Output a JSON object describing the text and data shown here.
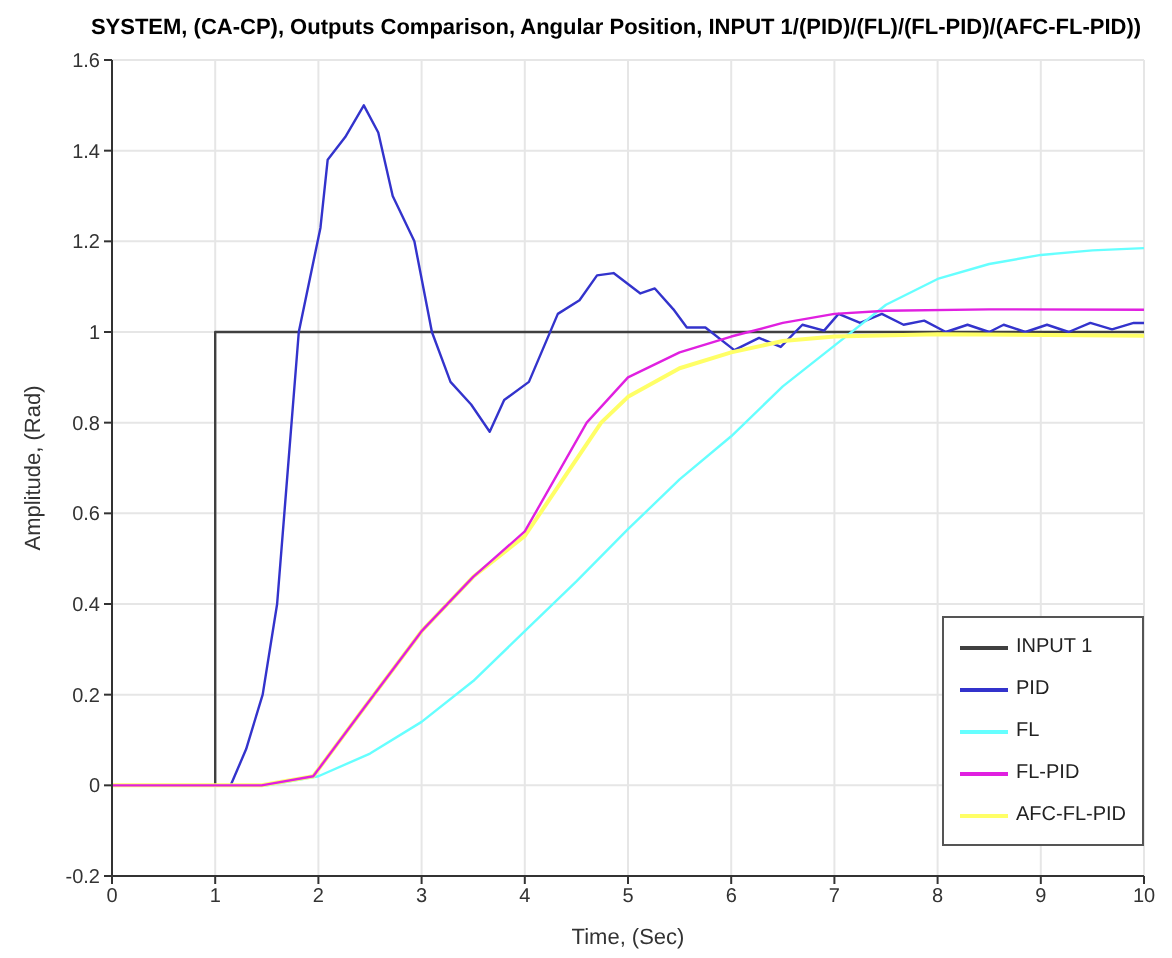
{
  "chart_data": {
    "type": "line",
    "title": "SYSTEM, (CA-CP), Outputs Comparison, Angular Position, INPUT 1/(PID)/(FL)/(FL-PID)/(AFC-FL-PID))",
    "xlabel": "Time, (Sec)",
    "ylabel": "Amplitude, (Rad)",
    "xlim": [
      0,
      10
    ],
    "xticks": [
      0,
      1,
      2,
      3,
      4,
      5,
      6,
      7,
      8,
      9,
      10
    ],
    "ylim": [
      -0.2,
      1.6
    ],
    "yticks": [
      -0.2,
      0,
      0.2,
      0.4,
      0.6,
      0.8,
      1,
      1.2,
      1.4,
      1.6
    ],
    "grid": true,
    "legend": "bottom right",
    "series": [
      {
        "name": "INPUT 1",
        "color": "#404040",
        "x": [
          0,
          1,
          1,
          10
        ],
        "values": [
          0,
          0,
          1,
          1
        ]
      },
      {
        "name": "PID",
        "color": "#3333cc",
        "x": [
          0,
          1.15,
          1.3,
          1.46,
          1.6,
          1.67,
          1.81,
          2.02,
          2.09,
          2.26,
          2.44,
          2.58,
          2.72,
          2.93,
          3.1,
          3.28,
          3.48,
          3.66,
          3.8,
          4.04,
          4.32,
          4.53,
          4.7,
          4.86,
          5.12,
          5.26,
          5.44,
          5.57,
          5.75,
          6.03,
          6.27,
          6.48,
          6.69,
          6.9,
          7.04,
          7.25,
          7.46,
          7.67,
          7.87,
          8.08,
          8.29,
          8.5,
          8.64,
          8.85,
          9.06,
          9.27,
          9.48,
          9.69,
          9.9,
          10
        ],
        "values": [
          0,
          0,
          0.08,
          0.2,
          0.4,
          0.6,
          1.0,
          1.23,
          1.38,
          1.43,
          1.5,
          1.44,
          1.3,
          1.2,
          1.0,
          0.89,
          0.84,
          0.78,
          0.85,
          0.89,
          1.04,
          1.07,
          1.125,
          1.13,
          1.085,
          1.096,
          1.05,
          1.01,
          1.01,
          0.96,
          0.987,
          0.967,
          1.016,
          1.003,
          1.04,
          1.02,
          1.04,
          1.016,
          1.025,
          1.0,
          1.016,
          1.0,
          1.016,
          1.0,
          1.016,
          1.0,
          1.02,
          1.006,
          1.02,
          1.02
        ]
      },
      {
        "name": "FL",
        "color": "#66ffff",
        "x": [
          0,
          1.5,
          2,
          2.5,
          3,
          3.5,
          4,
          4.5,
          5,
          5.5,
          6,
          6.5,
          7,
          7.5,
          8,
          8.5,
          9,
          9.5,
          10
        ],
        "values": [
          0,
          0,
          0.02,
          0.07,
          0.14,
          0.23,
          0.34,
          0.45,
          0.565,
          0.675,
          0.77,
          0.88,
          0.97,
          1.06,
          1.117,
          1.15,
          1.17,
          1.18,
          1.185
        ]
      },
      {
        "name": "FL-PID",
        "color": "#e020e0",
        "x": [
          0,
          1.45,
          1.95,
          2.44,
          3,
          3.5,
          4,
          4.6,
          5,
          5.5,
          6,
          6.5,
          7,
          7.5,
          8.5,
          10
        ],
        "values": [
          0,
          0,
          0.02,
          0.17,
          0.34,
          0.46,
          0.56,
          0.8,
          0.9,
          0.955,
          0.99,
          1.02,
          1.04,
          1.047,
          1.05,
          1.049
        ]
      },
      {
        "name": "AFC-FL-PID",
        "color": "#ffff66",
        "x": [
          0,
          1.45,
          1.95,
          2.44,
          3,
          3.5,
          4,
          4.74,
          5,
          5.5,
          6,
          6.5,
          7,
          8,
          10
        ],
        "values": [
          0,
          0,
          0.02,
          0.17,
          0.34,
          0.46,
          0.55,
          0.8,
          0.857,
          0.92,
          0.955,
          0.98,
          0.99,
          0.995,
          0.992
        ]
      }
    ]
  }
}
